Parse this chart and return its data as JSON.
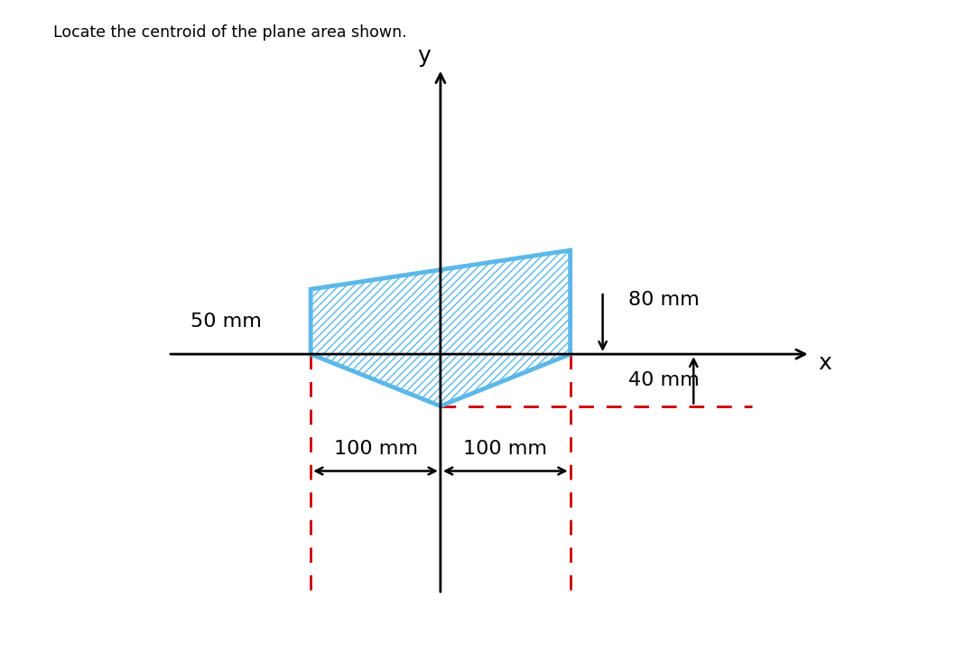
{
  "title": "Locate the centroid of the plane area shown.",
  "shape_color": "#5BB8E8",
  "shape_linewidth": 3.5,
  "bg_color": "#FFFFFF",
  "axis_color": "#000000",
  "dim_color": "#CC0000",
  "shape_vertices_x": [
    -100,
    -100,
    100,
    100,
    0,
    -100
  ],
  "shape_vertices_y": [
    0,
    50,
    80,
    0,
    -40,
    0
  ],
  "axis_xlim": [
    -220,
    300
  ],
  "axis_ylim": [
    -200,
    230
  ]
}
